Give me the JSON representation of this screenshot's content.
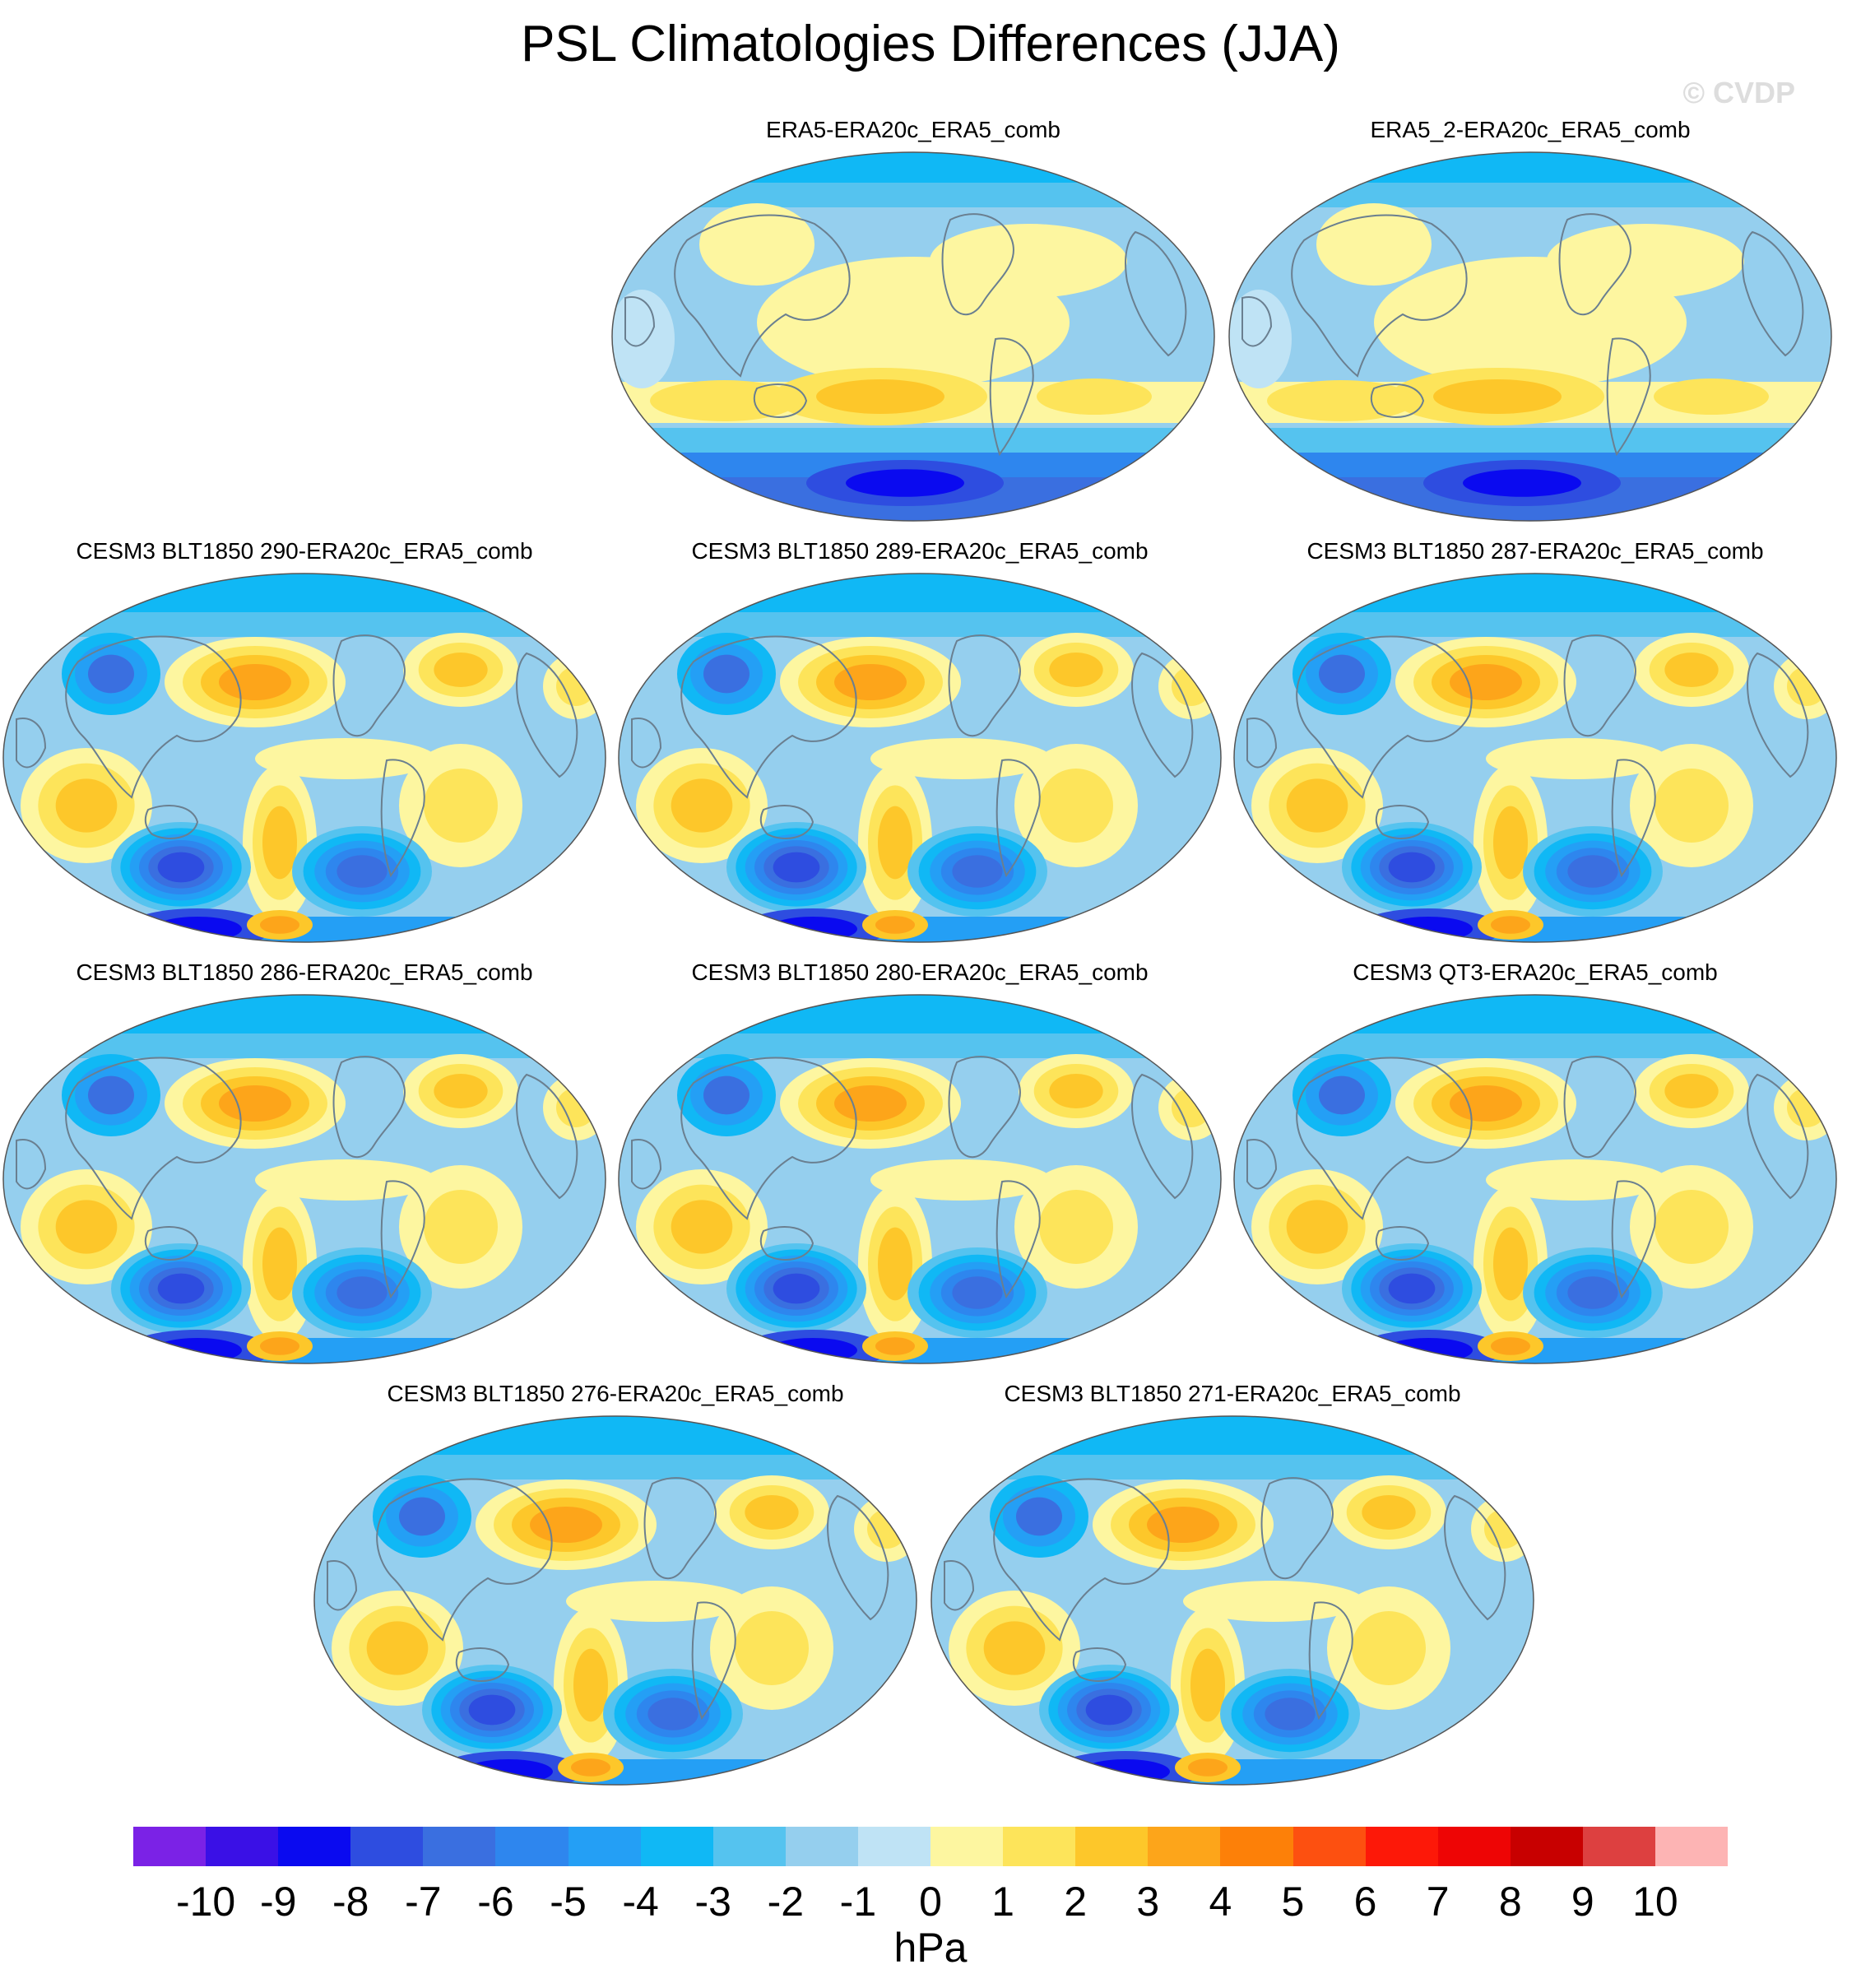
{
  "title": "PSL Climatologies Differences (JJA)",
  "copyright": "© CVDP",
  "panels": [
    {
      "title": "ERA5-ERA20c_ERA5_comb",
      "style": "obs"
    },
    {
      "title": "ERA5_2-ERA20c_ERA5_comb",
      "style": "obs"
    },
    {
      "title": "CESM3 BLT1850 290-ERA20c_ERA5_comb",
      "style": "model"
    },
    {
      "title": "CESM3 BLT1850 289-ERA20c_ERA5_comb",
      "style": "model"
    },
    {
      "title": "CESM3 BLT1850 287-ERA20c_ERA5_comb",
      "style": "model"
    },
    {
      "title": "CESM3 BLT1850 286-ERA20c_ERA5_comb",
      "style": "model"
    },
    {
      "title": "CESM3 BLT1850 280-ERA20c_ERA5_comb",
      "style": "model"
    },
    {
      "title": "CESM3 QT3-ERA20c_ERA5_comb",
      "style": "model"
    },
    {
      "title": "CESM3 BLT1850 276-ERA20c_ERA5_comb",
      "style": "model"
    },
    {
      "title": "CESM3 BLT1850 271-ERA20c_ERA5_comb",
      "style": "model"
    }
  ],
  "colorbar": {
    "units": "hPa",
    "labels": [
      "-10",
      "-9",
      "-8",
      "-7",
      "-6",
      "-5",
      "-4",
      "-3",
      "-2",
      "-1",
      "0",
      "1",
      "2",
      "3",
      "4",
      "5",
      "6",
      "7",
      "8",
      "9",
      "10"
    ],
    "colors": [
      "#7b22e6",
      "#3a10e6",
      "#0a0af0",
      "#2e4de0",
      "#3a6fe0",
      "#2e86ee",
      "#249ff5",
      "#10b8f5",
      "#55c3ef",
      "#95cfee",
      "#bfe3f5",
      "#fdf6a0",
      "#fde45a",
      "#fdc72a",
      "#fda51a",
      "#fd8008",
      "#fd5010",
      "#fd1808",
      "#ee0505",
      "#c80000",
      "#dd4040",
      "#fdb4b4"
    ]
  }
}
